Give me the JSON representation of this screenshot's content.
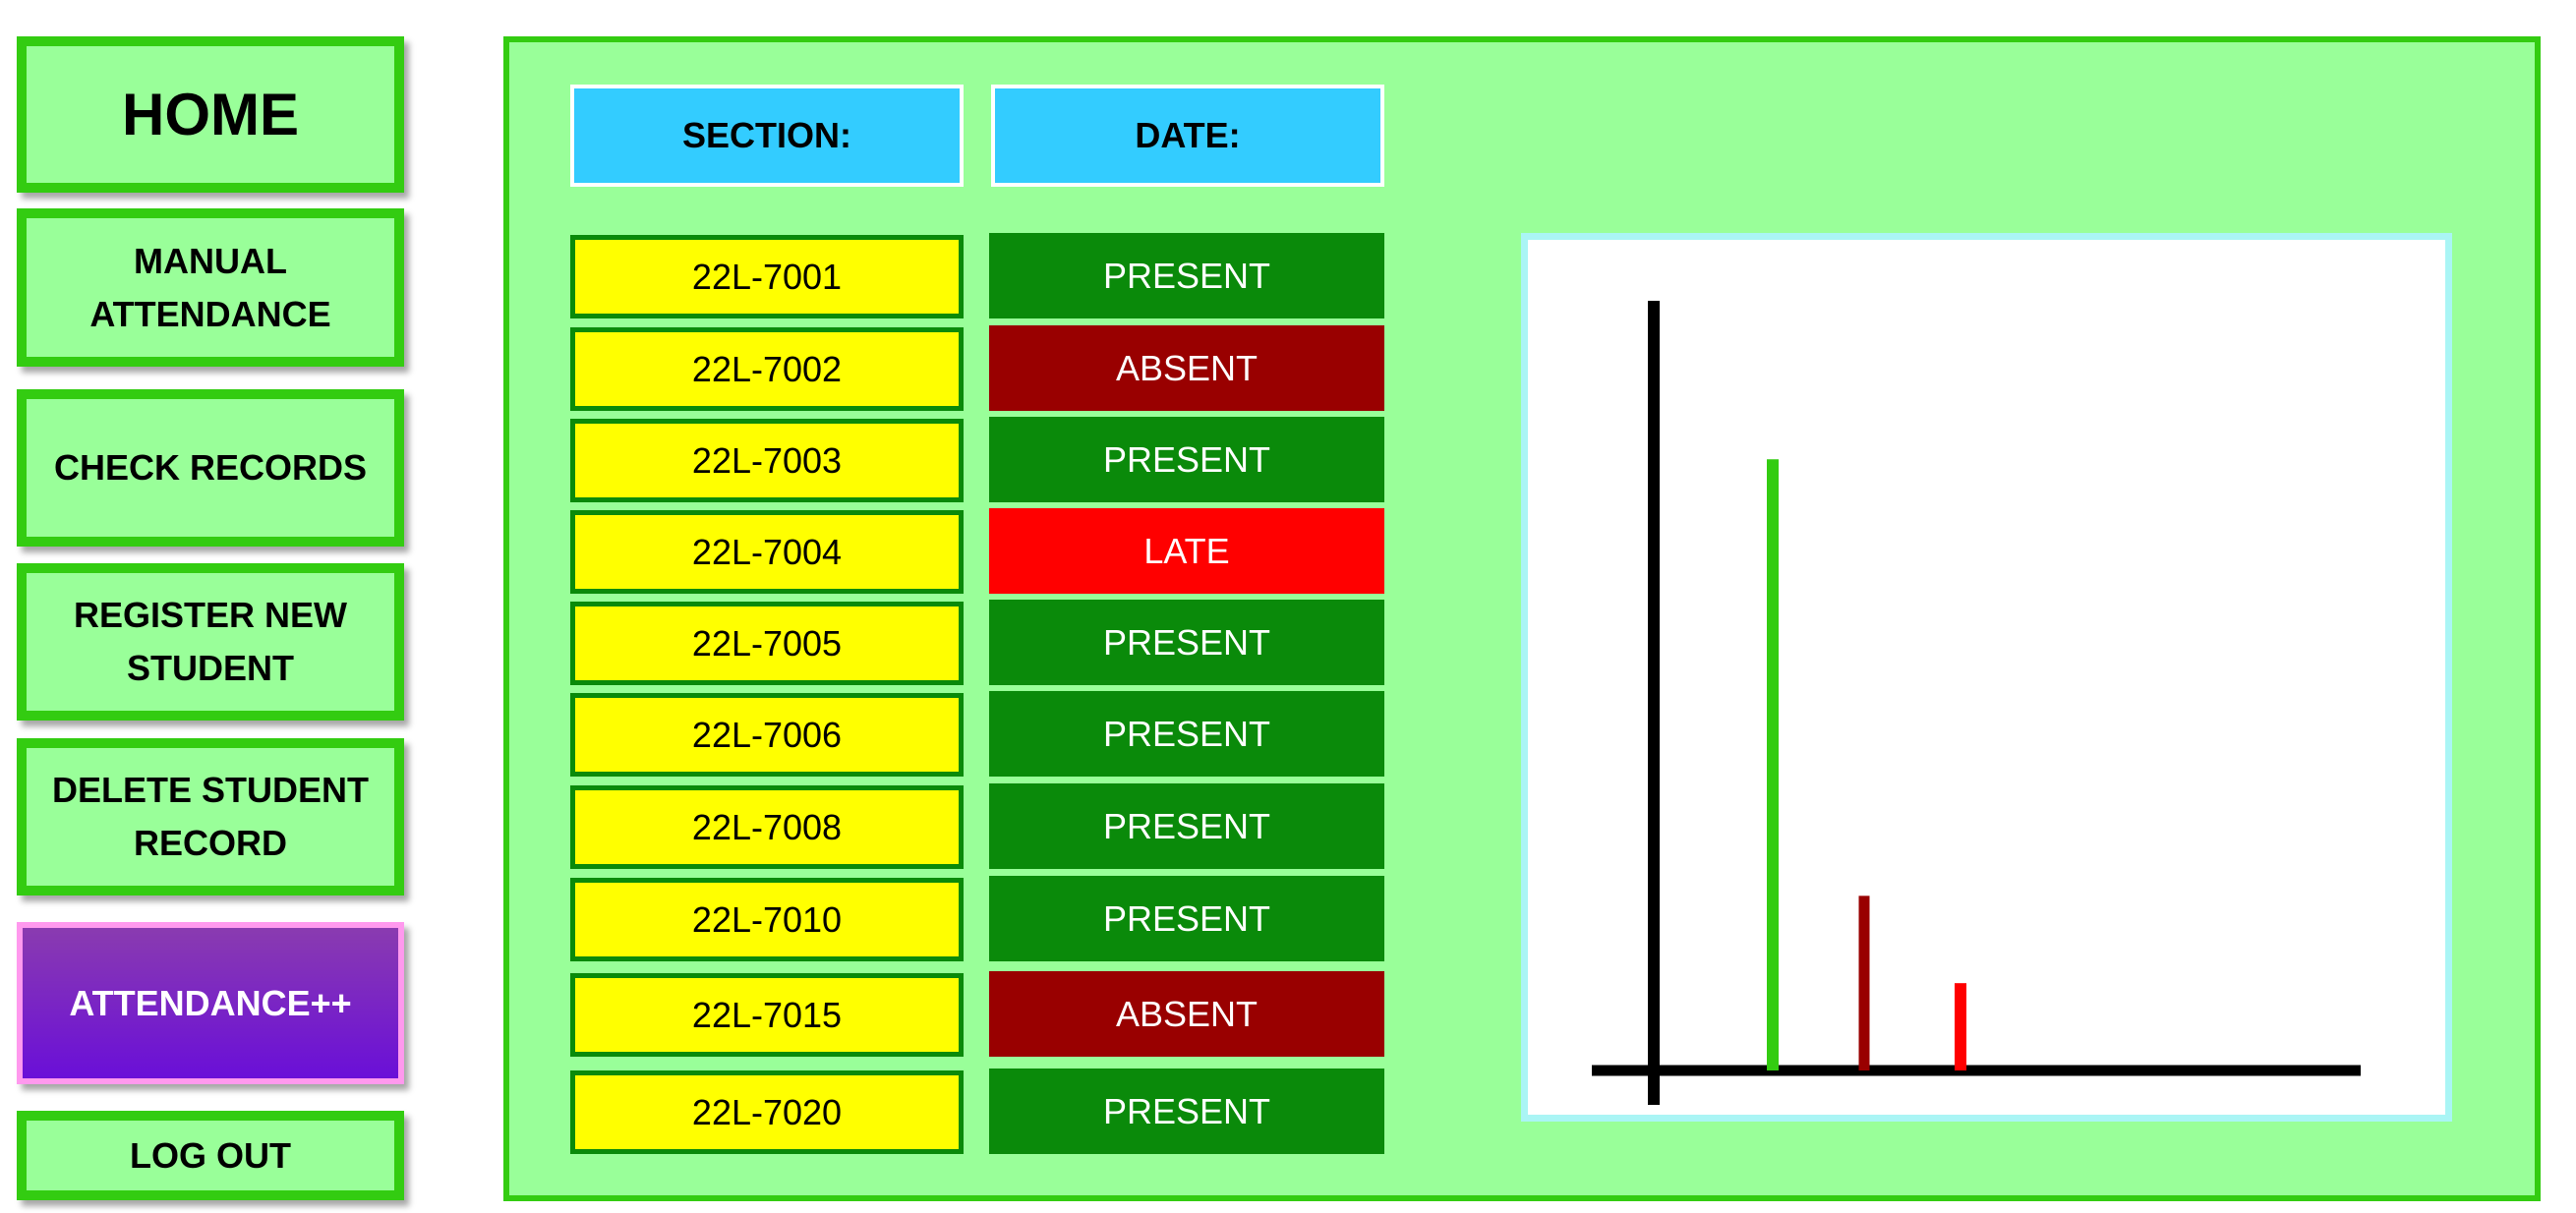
{
  "nav": {
    "home": "HOME",
    "manual": "MANUAL\nATTENDANCE",
    "check": "CHECK RECORDS",
    "register": "REGISTER NEW\nSTUDENT",
    "delete": "DELETE STUDENT\nRECORD",
    "attendance": "ATTENDANCE++",
    "logout": "LOG OUT"
  },
  "header": {
    "section": "SECTION:",
    "date": "DATE:"
  },
  "rows": [
    {
      "id": "22L-7001",
      "status": "PRESENT"
    },
    {
      "id": "22L-7002",
      "status": "ABSENT"
    },
    {
      "id": "22L-7003",
      "status": "PRESENT"
    },
    {
      "id": "22L-7004",
      "status": "LATE"
    },
    {
      "id": "22L-7005",
      "status": "PRESENT"
    },
    {
      "id": "22L-7006",
      "status": "PRESENT"
    },
    {
      "id": "22L-7008",
      "status": "PRESENT"
    },
    {
      "id": "22L-7010",
      "status": "PRESENT"
    },
    {
      "id": "22L-7015",
      "status": "ABSENT"
    },
    {
      "id": "22L-7020",
      "status": "PRESENT"
    }
  ],
  "status_colors": {
    "PRESENT": "#0a8a0a",
    "ABSENT": "#990000",
    "LATE": "#ff0000"
  },
  "chart_data": {
    "type": "bar",
    "categories": [
      "PRESENT",
      "ABSENT",
      "LATE"
    ],
    "values": [
      7,
      2,
      1
    ],
    "colors": [
      "#33cc11",
      "#990000",
      "#ff0000"
    ],
    "ylim": [
      0,
      8.5
    ]
  }
}
